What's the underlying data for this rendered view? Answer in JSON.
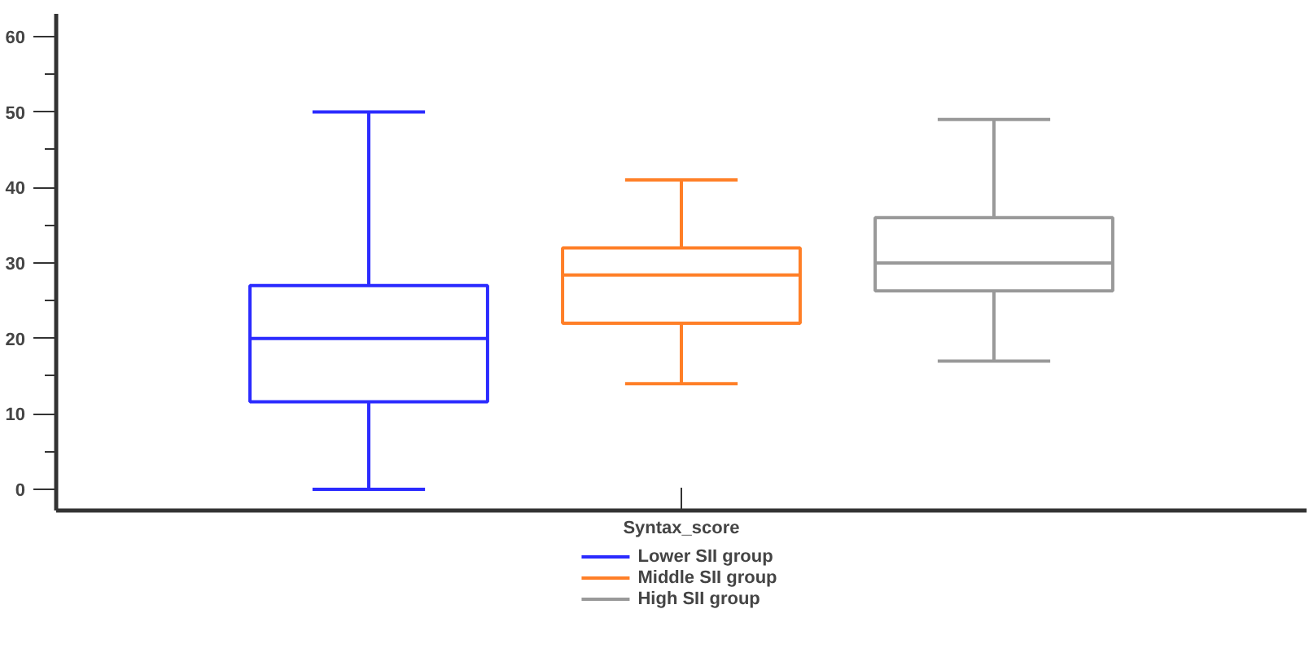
{
  "chart_data": {
    "type": "box",
    "categories": [
      "Syntax_score"
    ],
    "ylim": [
      -2.8,
      63
    ],
    "yticks": [
      0,
      10,
      20,
      30,
      40,
      50,
      60
    ],
    "grid": false,
    "legend": "bottom",
    "series": [
      {
        "name": "Lower SII group",
        "color": "#2b2bff",
        "boxes": [
          {
            "low": 0,
            "q1": 11.6,
            "median": 20,
            "q3": 27,
            "high": 50
          }
        ]
      },
      {
        "name": "Middle SII group",
        "color": "#ff7f27",
        "boxes": [
          {
            "low": 14,
            "q1": 22,
            "median": 28.4,
            "q3": 32,
            "high": 41
          }
        ]
      },
      {
        "name": "High SII group",
        "color": "#999999",
        "boxes": [
          {
            "low": 17,
            "q1": 26.3,
            "median": 30,
            "q3": 36,
            "high": 49
          }
        ]
      }
    ]
  }
}
